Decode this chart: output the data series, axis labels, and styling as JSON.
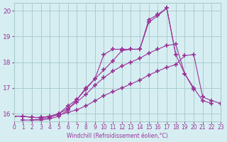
{
  "background_color": "#d6eef2",
  "grid_color": "#aacccc",
  "line_color": "#993399",
  "xlabel": "Windchill (Refroidissement éolien,°C)",
  "xlabel_color": "#993399",
  "ylabel_color": "#993399",
  "tick_color": "#993399",
  "xlim": [
    0,
    23
  ],
  "ylim": [
    15.7,
    20.3
  ],
  "yticks": [
    16,
    17,
    18,
    19,
    20
  ],
  "xticks": [
    0,
    1,
    2,
    3,
    4,
    5,
    6,
    7,
    8,
    9,
    10,
    11,
    12,
    13,
    14,
    15,
    16,
    17,
    18,
    19,
    20,
    21,
    22,
    23
  ],
  "line1_x": [
    0,
    1,
    2,
    3,
    4,
    5,
    6,
    7,
    8,
    9,
    10,
    11,
    12,
    13,
    14,
    15,
    16,
    17,
    18,
    19,
    20,
    21,
    22,
    23
  ],
  "line1_y": [
    15.9,
    15.9,
    15.85,
    15.85,
    15.9,
    15.95,
    16.05,
    16.15,
    16.3,
    16.5,
    16.7,
    16.85,
    17.0,
    17.15,
    17.3,
    17.5,
    17.65,
    17.8,
    17.9,
    18.25,
    18.3,
    16.65,
    16.5,
    16.4
  ],
  "line2_x": [
    0,
    1,
    2,
    3,
    4,
    5,
    6,
    7,
    8,
    9,
    10,
    11,
    12,
    13,
    14,
    15,
    16,
    17,
    18,
    19,
    20,
    21,
    22,
    23
  ],
  "line2_y": [
    15.9,
    15.9,
    15.85,
    15.85,
    15.9,
    16.0,
    16.2,
    16.45,
    16.75,
    17.1,
    17.4,
    17.65,
    17.85,
    18.0,
    18.15,
    18.35,
    18.5,
    18.65,
    18.7,
    17.55,
    17.0,
    16.5,
    16.4,
    null
  ],
  "line3_x": [
    1,
    2,
    3,
    4,
    5,
    6,
    7,
    8,
    9,
    10,
    11,
    12,
    13,
    14,
    15,
    16,
    17,
    18,
    19,
    20,
    21,
    22,
    23
  ],
  "line3_y": [
    15.75,
    15.75,
    15.8,
    15.85,
    16.0,
    16.3,
    16.55,
    16.95,
    17.35,
    17.7,
    18.05,
    18.45,
    18.5,
    18.5,
    19.55,
    19.8,
    20.1,
    18.3,
    17.55,
    16.95,
    null,
    null,
    null
  ],
  "line4_x": [
    2,
    3,
    4,
    5,
    6,
    7,
    8,
    9,
    10,
    11,
    12,
    13,
    14,
    15,
    16,
    17,
    18,
    19,
    20,
    21
  ],
  "line4_y": [
    15.75,
    15.75,
    15.8,
    15.9,
    16.15,
    16.55,
    17.0,
    17.35,
    18.3,
    18.5,
    18.5,
    18.5,
    18.5,
    19.65,
    19.85,
    20.1,
    18.3,
    null,
    null,
    null
  ]
}
